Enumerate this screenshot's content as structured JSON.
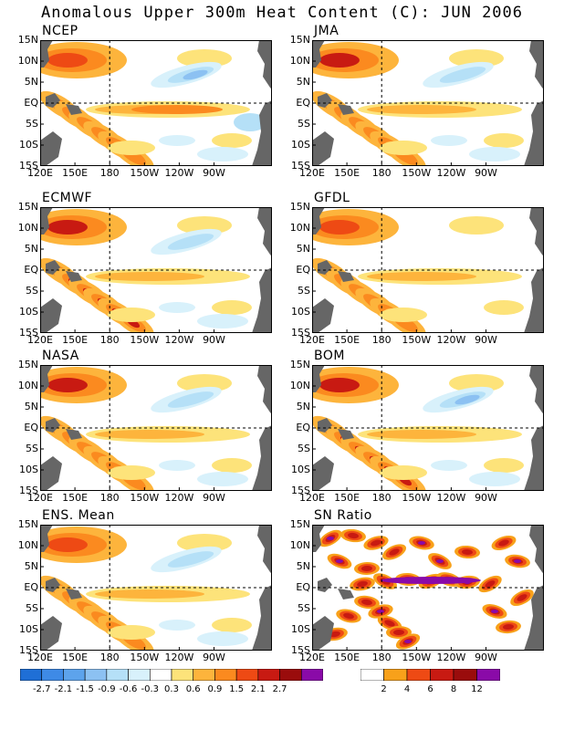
{
  "title": "Anomalous Upper 300m Heat Content (C): JUN 2006",
  "lat_labels": [
    "15N",
    "10N",
    "5N",
    "EQ",
    "5S",
    "10S",
    "15S"
  ],
  "lon_labels": [
    "120E",
    "150E",
    "180",
    "150W",
    "120W",
    "90W"
  ],
  "colors": {
    "land": "#666666",
    "neg": [
      "#1f6fd6",
      "#3e8ae6",
      "#5da3ec",
      "#8cc1f2",
      "#b5e0f7",
      "#d8f1fb"
    ],
    "pos": [
      "#ffffff",
      "#fde37a",
      "#fdb43c",
      "#fb8a1f",
      "#ee4a14",
      "#c81a12",
      "#9a0c0c",
      "#8a0aa8"
    ],
    "sn": [
      "#ffffff",
      "#f8a11a",
      "#ee4a14",
      "#c81a12",
      "#9a0c0c",
      "#8a0aa8"
    ]
  },
  "chart_data": [
    {
      "type": "heatmap",
      "title": "NCEP",
      "variable": "heat content anomaly (C)",
      "lat_range": [
        "15S",
        "15N"
      ],
      "lon_range": [
        "120E",
        "80W"
      ],
      "features": [
        {
          "region": "north-west",
          "value": 1.2
        },
        {
          "region": "south-west diagonal band",
          "value": 1.2
        },
        {
          "region": "equatorial tongue",
          "value": 0.8
        },
        {
          "region": "central north",
          "value": -0.9
        },
        {
          "region": "south-east",
          "value": -0.6
        }
      ]
    },
    {
      "type": "heatmap",
      "title": "JMA",
      "variable": "heat content anomaly (C)",
      "lat_range": [
        "15S",
        "15N"
      ],
      "lon_range": [
        "120E",
        "80W"
      ],
      "features": [
        {
          "region": "north-west",
          "value": 1.5
        },
        {
          "region": "south-west diagonal band",
          "value": 1.5
        },
        {
          "region": "equatorial tongue",
          "value": 0.7
        },
        {
          "region": "central north",
          "value": -0.6
        }
      ]
    },
    {
      "type": "heatmap",
      "title": "ECMWF",
      "variable": "heat content anomaly (C)",
      "lat_range": [
        "15S",
        "15N"
      ],
      "lon_range": [
        "120E",
        "80W"
      ],
      "features": [
        {
          "region": "north-west",
          "value": 1.2
        },
        {
          "region": "south-west diagonal band",
          "value": 1.2
        },
        {
          "region": "equatorial tongue",
          "value": 0.7
        },
        {
          "region": "central north",
          "value": -0.6
        }
      ]
    },
    {
      "type": "heatmap",
      "title": "GFDL",
      "variable": "heat content anomaly (C)",
      "lat_range": [
        "15S",
        "15N"
      ],
      "lon_range": [
        "120E",
        "80W"
      ],
      "features": [
        {
          "region": "north-west",
          "value": 1.5
        },
        {
          "region": "south-west diagonal band",
          "value": 2.1
        },
        {
          "region": "equatorial tongue",
          "value": 0.9
        }
      ]
    },
    {
      "type": "heatmap",
      "title": "NASA",
      "variable": "heat content anomaly (C)",
      "lat_range": [
        "15S",
        "15N"
      ],
      "lon_range": [
        "120E",
        "80W"
      ],
      "features": [
        {
          "region": "north-west",
          "value": 1.5
        },
        {
          "region": "south-west diagonal band",
          "value": 1.5
        },
        {
          "region": "equatorial tongue",
          "value": 0.6
        },
        {
          "region": "central north",
          "value": -0.6
        }
      ]
    },
    {
      "type": "heatmap",
      "title": "BOM",
      "variable": "heat content anomaly (C)",
      "lat_range": [
        "15S",
        "15N"
      ],
      "lon_range": [
        "120E",
        "80W"
      ],
      "features": [
        {
          "region": "north-west",
          "value": 1.2
        },
        {
          "region": "south-west diagonal band",
          "value": 1.2
        },
        {
          "region": "equatorial tongue",
          "value": 0.6
        },
        {
          "region": "central north",
          "value": -0.9
        }
      ]
    },
    {
      "type": "heatmap",
      "title": "ENS. Mean",
      "variable": "heat content anomaly (C)",
      "lat_range": [
        "15S",
        "15N"
      ],
      "lon_range": [
        "120E",
        "80W"
      ],
      "features": [
        {
          "region": "north-west",
          "value": 1.2
        },
        {
          "region": "south-west diagonal band",
          "value": 1.2
        },
        {
          "region": "equatorial tongue",
          "value": 0.6
        },
        {
          "region": "central north",
          "value": -0.6
        }
      ]
    },
    {
      "type": "heatmap",
      "title": "SN Ratio",
      "variable": "signal-to-noise ratio",
      "lat_range": [
        "15S",
        "15N"
      ],
      "lon_range": [
        "120E",
        "80W"
      ],
      "features": [
        {
          "region": "western half",
          "value": 12
        },
        {
          "region": "equatorial band",
          "value": 12
        },
        {
          "region": "eastern scattered",
          "value": 6
        }
      ]
    }
  ],
  "colorbar_anom": {
    "labels": [
      "-2.7",
      "-2.1",
      "-1.5",
      "-0.9",
      "-0.6",
      "-0.3",
      "0.3",
      "0.6",
      "0.9",
      "1.5",
      "2.1",
      "2.7"
    ],
    "colors": [
      "#1f6fd6",
      "#3e8ae6",
      "#5da3ec",
      "#8cc1f2",
      "#b5e0f7",
      "#d8f1fb",
      "#ffffff",
      "#fde37a",
      "#fdb43c",
      "#fb8a1f",
      "#ee4a14",
      "#c81a12",
      "#9a0c0c",
      "#8a0aa8"
    ]
  },
  "colorbar_sn": {
    "labels": [
      "2",
      "4",
      "6",
      "8",
      "12"
    ],
    "colors": [
      "#ffffff",
      "#f8a11a",
      "#ee4a14",
      "#c81a12",
      "#9a0c0c",
      "#8a0aa8"
    ]
  }
}
